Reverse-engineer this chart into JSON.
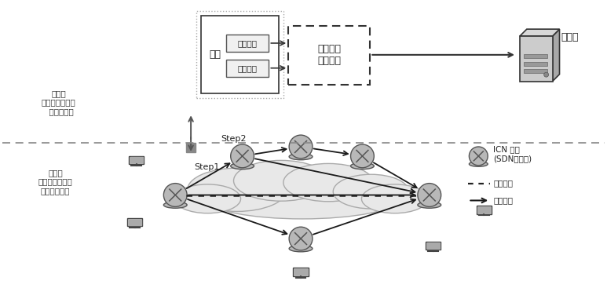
{
  "bg_color": "#ffffff",
  "control_plane_label": "控制面\n（逻辑拓扑重构\n  策略生成）",
  "data_plane_label": "数据面\n（逻辑拓扑重构\n策略的执行）",
  "step1_label": "Step1",
  "step2_label": "Step2",
  "sense_box_label": "感知",
  "net_state_label": "网络状态",
  "net_resource_label": "网络资源",
  "logic_box_label": "逻辑拓扑\n重构策略",
  "controller_label": "控制器",
  "icn_node_label": "ICN 节点\n(SDN交换机)",
  "logic_link_label": "逻辑链路",
  "physical_link_label": "物理链路"
}
